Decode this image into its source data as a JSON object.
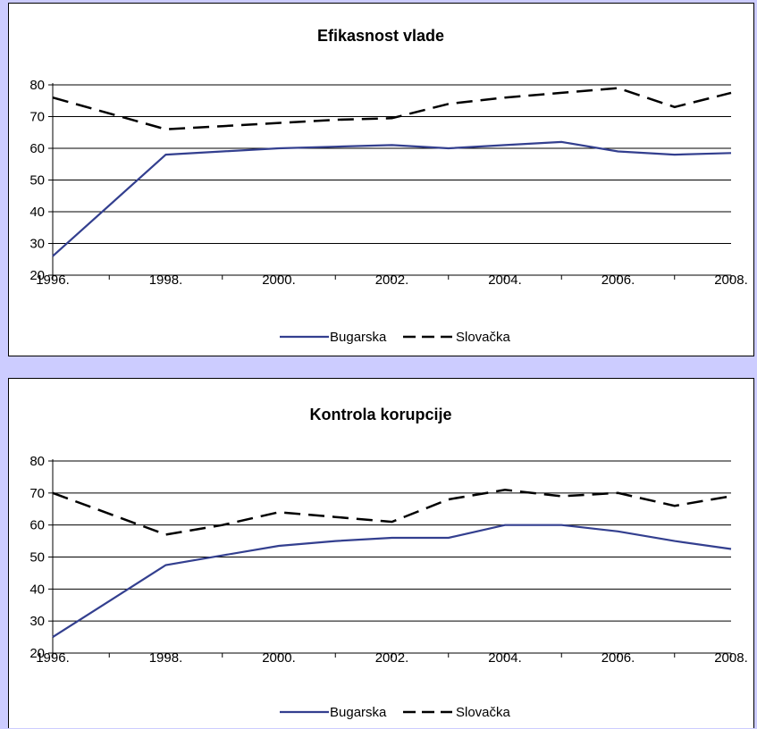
{
  "colors": {
    "background": "#ccccff",
    "panel": "#ffffff",
    "bugarska": "#333f8f",
    "slovacka": "#000000",
    "grid": "#000000"
  },
  "legend": {
    "bugarska_label": "Bugarska",
    "slovacka_label": "Slovačka"
  },
  "chart_data": [
    {
      "type": "line",
      "title": "Efikasnost vlade",
      "xlabel": "",
      "ylabel": "",
      "x": [
        1996,
        1998,
        1999,
        2000,
        2001,
        2002,
        2003,
        2004,
        2005,
        2006,
        2007,
        2008
      ],
      "x_tick_labels": [
        "1996.",
        "1998.",
        "2000.",
        "2002.",
        "2004.",
        "2006.",
        "2008."
      ],
      "y_tick_labels": [
        "20",
        "30",
        "40",
        "50",
        "60",
        "70",
        "80"
      ],
      "ylim": [
        20,
        80
      ],
      "xlim": [
        1996,
        2008
      ],
      "grid": "horizontal",
      "legend_position": "bottom",
      "series": [
        {
          "name": "Bugarska",
          "style": "solid",
          "values": [
            26,
            58,
            59,
            60,
            60.5,
            61,
            60,
            61,
            62,
            59,
            58,
            58.5
          ]
        },
        {
          "name": "Slovačka",
          "style": "dashed",
          "values": [
            76,
            66,
            67,
            68,
            69,
            69.5,
            74,
            76,
            77.5,
            79,
            73,
            77.5
          ]
        }
      ]
    },
    {
      "type": "line",
      "title": "Kontrola korupcije",
      "xlabel": "",
      "ylabel": "",
      "x": [
        1996,
        1998,
        1999,
        2000,
        2001,
        2002,
        2003,
        2004,
        2005,
        2006,
        2007,
        2008
      ],
      "x_tick_labels": [
        "1996.",
        "1998.",
        "2000.",
        "2002.",
        "2004.",
        "2006.",
        "2008."
      ],
      "y_tick_labels": [
        "20",
        "30",
        "40",
        "50",
        "60",
        "70",
        "80"
      ],
      "ylim": [
        20,
        80
      ],
      "xlim": [
        1996,
        2008
      ],
      "grid": "horizontal",
      "legend_position": "bottom",
      "series": [
        {
          "name": "Bugarska",
          "style": "solid",
          "values": [
            25,
            47.5,
            50.5,
            53.5,
            55,
            56,
            56,
            60,
            60,
            58,
            55,
            52.5
          ]
        },
        {
          "name": "Slovačka",
          "style": "dashed",
          "values": [
            70,
            57,
            60,
            64,
            62.5,
            61,
            68,
            71,
            69,
            70,
            66,
            69
          ]
        }
      ]
    }
  ]
}
